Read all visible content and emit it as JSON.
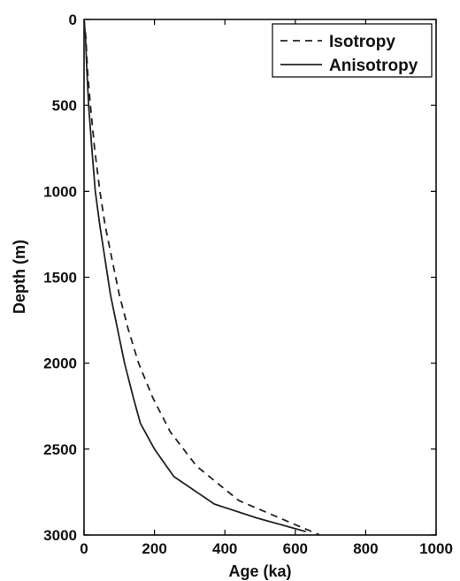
{
  "chart_data": {
    "type": "line",
    "title": "",
    "xlabel": "Age (ka)",
    "ylabel": "Depth (m)",
    "xlim": [
      0,
      1000
    ],
    "ylim": [
      0,
      3000
    ],
    "y_inverted": true,
    "x_ticks": [
      0,
      200,
      400,
      600,
      800,
      1000
    ],
    "y_ticks": [
      0,
      500,
      1000,
      1500,
      2000,
      2500,
      3000
    ],
    "grid": false,
    "legend_position": "top-right",
    "series": [
      {
        "name": "Isotropy",
        "style": "dashed",
        "color": "#222222",
        "points": [
          [
            0,
            0
          ],
          [
            5,
            100
          ],
          [
            10,
            300
          ],
          [
            18,
            500
          ],
          [
            30,
            750
          ],
          [
            45,
            1000
          ],
          [
            60,
            1200
          ],
          [
            80,
            1400
          ],
          [
            100,
            1600
          ],
          [
            125,
            1800
          ],
          [
            155,
            2000
          ],
          [
            195,
            2200
          ],
          [
            245,
            2400
          ],
          [
            320,
            2600
          ],
          [
            440,
            2800
          ],
          [
            600,
            2940
          ],
          [
            670,
            3000
          ]
        ]
      },
      {
        "name": "Anisotropy",
        "style": "solid",
        "color": "#222222",
        "points": [
          [
            0,
            0
          ],
          [
            4,
            100
          ],
          [
            8,
            300
          ],
          [
            13,
            500
          ],
          [
            22,
            750
          ],
          [
            32,
            1000
          ],
          [
            45,
            1200
          ],
          [
            60,
            1400
          ],
          [
            75,
            1600
          ],
          [
            95,
            1800
          ],
          [
            115,
            2000
          ],
          [
            140,
            2200
          ],
          [
            160,
            2350
          ],
          [
            200,
            2500
          ],
          [
            255,
            2660
          ],
          [
            370,
            2820
          ],
          [
            490,
            2900
          ],
          [
            630,
            2980
          ]
        ]
      }
    ]
  }
}
